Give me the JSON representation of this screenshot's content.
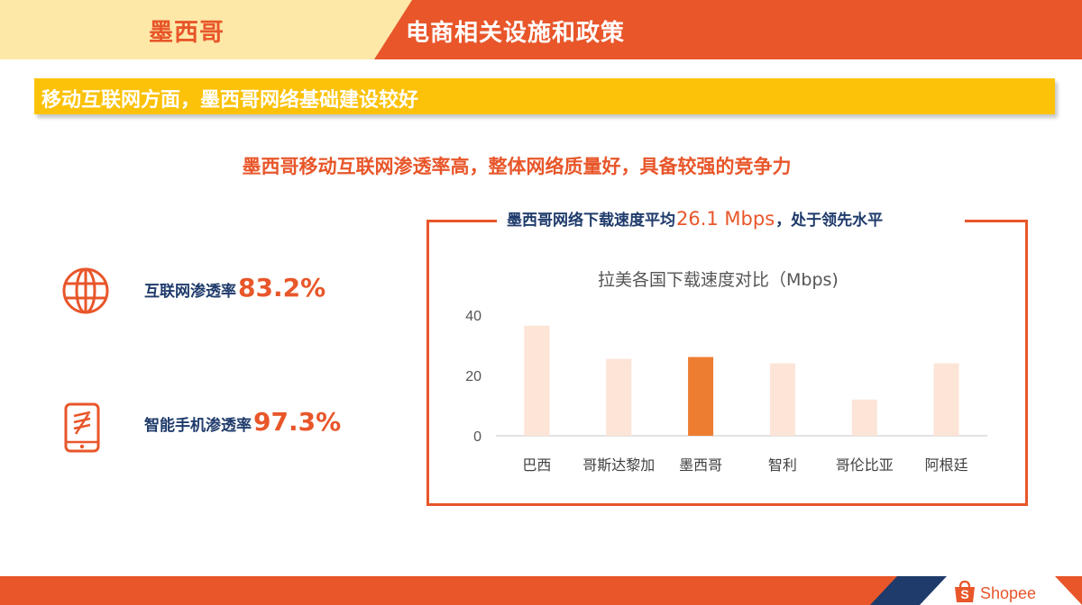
{
  "header": {
    "country": "墨西哥",
    "title": "电商相关设施和政策"
  },
  "banner": {
    "text": "移动互联网方面，墨西哥网络基础建设较好"
  },
  "subtitle": "墨西哥移动互联网渗透率高，整体网络质量好，具备较强的竞争力",
  "stats": [
    {
      "label": "互联网渗透率",
      "value": "83.2%",
      "icon": "globe-icon"
    },
    {
      "label": "智能手机渗透率",
      "value": "97.3%",
      "icon": "smartphone-icon"
    }
  ],
  "chart_box": {
    "heading_prefix": "墨西哥网络下载速度平均",
    "heading_value": "26.1 Mbps",
    "heading_suffix": "，处于领先水平"
  },
  "chart_data": {
    "type": "bar",
    "title": "拉美各国下载速度对比（Mbps)",
    "categories": [
      "巴西",
      "哥斯达黎加",
      "墨西哥",
      "智利",
      "哥伦比亚",
      "阿根廷"
    ],
    "values": [
      36.5,
      25.5,
      26.1,
      24,
      12,
      24
    ],
    "highlight_index": 2,
    "ylim": [
      0,
      40
    ],
    "yticks": [
      "0",
      "20",
      "40"
    ],
    "grid": false,
    "colors": {
      "bar": "#fce4d6",
      "highlight": "#ed7d31",
      "axis": "#d9d9d9"
    }
  },
  "logo": {
    "text": "Shopee"
  },
  "colors": {
    "primary": "#e8562a",
    "navy": "#1f3b6b",
    "banner": "#fcc20a",
    "header_left": "#fde8a8"
  }
}
